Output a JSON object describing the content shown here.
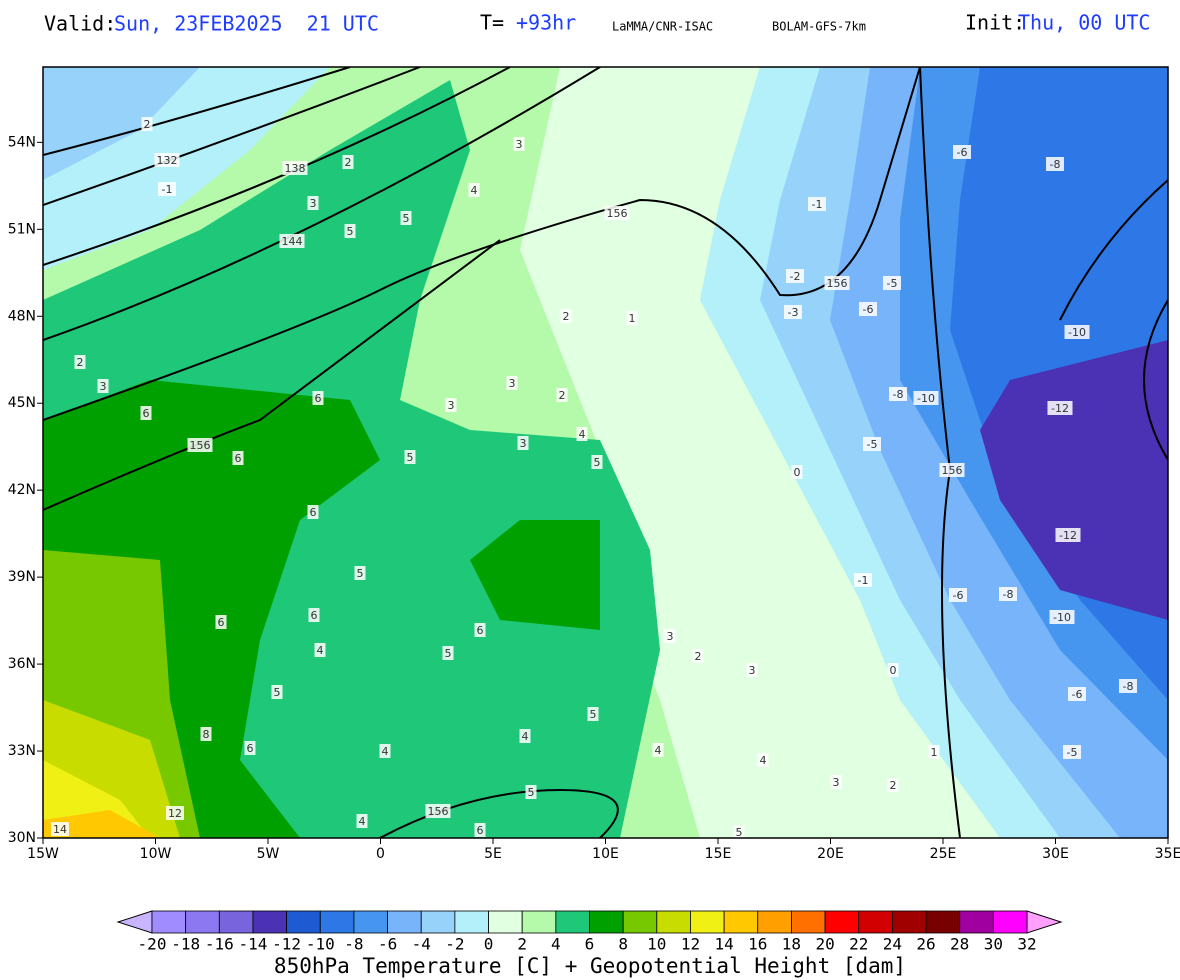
{
  "header": {
    "valid_label": "Valid:",
    "valid_time": "Sun, 23FEB2025  21 UTC",
    "lead_label": "T=",
    "lead_time": "+93hr",
    "source": "LaMMA/CNR-ISAC",
    "model": "BOLAM-GFS-7km",
    "init_label": "Init:",
    "init_time": "Thu, 00 UTC"
  },
  "map": {
    "xlim": [
      -15,
      35
    ],
    "ylim": [
      30,
      56.6
    ],
    "xticks": [
      {
        "value": -15,
        "label": "15W"
      },
      {
        "value": -10,
        "label": "10W"
      },
      {
        "value": -5,
        "label": "5W"
      },
      {
        "value": 0,
        "label": "0"
      },
      {
        "value": 5,
        "label": "5E"
      },
      {
        "value": 10,
        "label": "10E"
      },
      {
        "value": 15,
        "label": "15E"
      },
      {
        "value": 20,
        "label": "20E"
      },
      {
        "value": 25,
        "label": "25E"
      },
      {
        "value": 30,
        "label": "30E"
      },
      {
        "value": 35,
        "label": "35E"
      }
    ],
    "yticks": [
      {
        "value": 30,
        "label": "30N"
      },
      {
        "value": 33,
        "label": "33N"
      },
      {
        "value": 36,
        "label": "36N"
      },
      {
        "value": 39,
        "label": "39N"
      },
      {
        "value": 42,
        "label": "42N"
      },
      {
        "value": 45,
        "label": "45N"
      },
      {
        "value": 48,
        "label": "48N"
      },
      {
        "value": 51,
        "label": "51N"
      },
      {
        "value": 54,
        "label": "54N"
      }
    ],
    "grid": true,
    "contour_labels": [
      132,
      138,
      144,
      156,
      156,
      156,
      156,
      156,
      -6,
      -8,
      -1,
      -2,
      -3,
      -5,
      -6,
      -10,
      -8,
      -10,
      -12,
      -12,
      -10,
      -8,
      -6,
      -6,
      -5,
      -8,
      -5,
      0,
      -1,
      1,
      2,
      3,
      2,
      3,
      3,
      4,
      5,
      5,
      6,
      6,
      6,
      6,
      5,
      6,
      6,
      5,
      4,
      8,
      6,
      5,
      6,
      5,
      4,
      4,
      4,
      4,
      5,
      6,
      5,
      4,
      3,
      2,
      3,
      0,
      1,
      2,
      3,
      12,
      14,
      2,
      3,
      2,
      2,
      3,
      5,
      5,
      3,
      4,
      -1
    ]
  },
  "colorbar": {
    "ticks": [
      -20,
      -18,
      -16,
      -14,
      -12,
      -10,
      -8,
      -6,
      -4,
      -2,
      0,
      2,
      4,
      6,
      8,
      10,
      12,
      14,
      16,
      18,
      20,
      22,
      24,
      26,
      28,
      30,
      32
    ],
    "colors": [
      "#a08cff",
      "#8c78f0",
      "#7864dc",
      "#4b32b4",
      "#1e5ad2",
      "#2d78e6",
      "#4696f0",
      "#78b4fa",
      "#96d2fa",
      "#b4f0fa",
      "#e1ffe1",
      "#b4faaa",
      "#1ec878",
      "#00a000",
      "#78c800",
      "#c8dc00",
      "#f0f014",
      "#ffc800",
      "#ffa000",
      "#ff7000",
      "#ff0000",
      "#d20000",
      "#a00000",
      "#780000",
      "#a000a0",
      "#ff00ff"
    ],
    "under": "#c8b4ff",
    "over": "#ffa0ff",
    "title": "850hPa Temperature [C] + Geopotential Height [dam]"
  }
}
